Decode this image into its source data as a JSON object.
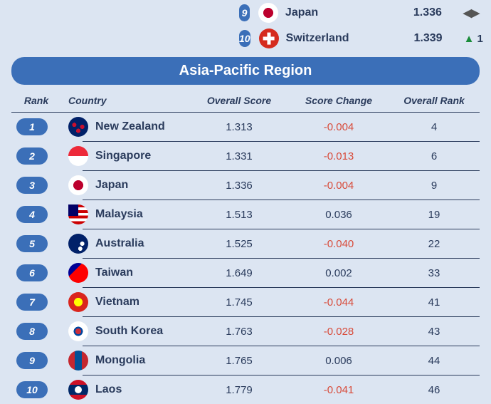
{
  "colors": {
    "background": "#dce5f2",
    "pill": "#3b6fb8",
    "header_bar": "#3b6fb8",
    "text_primary": "#2a3b5c",
    "negative": "#d84b3a",
    "positive_arrow": "#1a8c3a",
    "divider": "#2a3b5c"
  },
  "top_section": {
    "rows": [
      {
        "rank": "9",
        "country": "Japan",
        "flag_class": "flag-jp",
        "score": "1.336",
        "change_dir": "same",
        "change_val": ""
      },
      {
        "rank": "10",
        "country": "Switzerland",
        "flag_class": "flag-ch",
        "score": "1.339",
        "change_dir": "up",
        "change_val": "1"
      }
    ]
  },
  "region_header": "Asia-Pacific Region",
  "column_headers": {
    "rank": "Rank",
    "country": "Country",
    "score": "Overall Score",
    "change": "Score Change",
    "orank": "Overall Rank"
  },
  "rows": [
    {
      "rank": "1",
      "country": "New Zealand",
      "flag_class": "flag-nz",
      "score": "1.313",
      "change": "-0.004",
      "change_sign": "neg",
      "orank": "4"
    },
    {
      "rank": "2",
      "country": "Singapore",
      "flag_class": "flag-sg",
      "score": "1.331",
      "change": "-0.013",
      "change_sign": "neg",
      "orank": "6"
    },
    {
      "rank": "3",
      "country": "Japan",
      "flag_class": "flag-jp",
      "score": "1.336",
      "change": "-0.004",
      "change_sign": "neg",
      "orank": "9"
    },
    {
      "rank": "4",
      "country": "Malaysia",
      "flag_class": "flag-my",
      "score": "1.513",
      "change": "0.036",
      "change_sign": "pos",
      "orank": "19"
    },
    {
      "rank": "5",
      "country": "Australia",
      "flag_class": "flag-au",
      "score": "1.525",
      "change": "-0.040",
      "change_sign": "neg",
      "orank": "22"
    },
    {
      "rank": "6",
      "country": "Taiwan",
      "flag_class": "flag-tw",
      "score": "1.649",
      "change": "0.002",
      "change_sign": "pos",
      "orank": "33"
    },
    {
      "rank": "7",
      "country": "Vietnam",
      "flag_class": "flag-vn",
      "score": "1.745",
      "change": "-0.044",
      "change_sign": "neg",
      "orank": "41"
    },
    {
      "rank": "8",
      "country": "South Korea",
      "flag_class": "flag-kr",
      "score": "1.763",
      "change": "-0.028",
      "change_sign": "neg",
      "orank": "43"
    },
    {
      "rank": "9",
      "country": "Mongolia",
      "flag_class": "flag-mn",
      "score": "1.765",
      "change": "0.006",
      "change_sign": "pos",
      "orank": "44"
    },
    {
      "rank": "10",
      "country": "Laos",
      "flag_class": "flag-la",
      "score": "1.779",
      "change": "-0.041",
      "change_sign": "neg",
      "orank": "46"
    }
  ]
}
